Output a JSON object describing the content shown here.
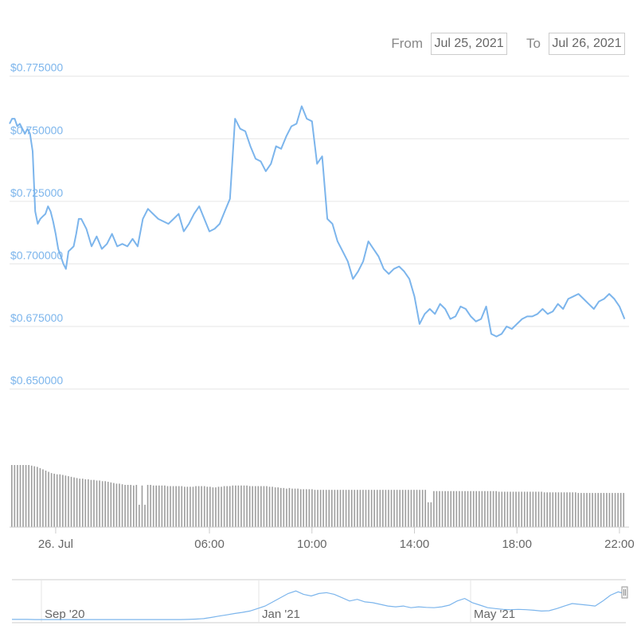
{
  "range_selector": {
    "from_label": "From",
    "from_value": "Jul 25, 2021",
    "to_label": "To",
    "to_value": "Jul 26, 2021"
  },
  "colors": {
    "price_line": "#7cb5ec",
    "volume_bar": "#9e9e9e",
    "grid": "#e6e6e6",
    "axis_label": "#7cb5ec",
    "x_label": "#666666"
  },
  "chart_data": [
    {
      "type": "line",
      "x_unit": "hour of Jul 26 (UTC)",
      "ylim": [
        0.64,
        0.78
      ],
      "y_ticks": [
        {
          "value": 0.775,
          "label": "$0.775000"
        },
        {
          "value": 0.75,
          "label": "$0.750000"
        },
        {
          "value": 0.725,
          "label": "$0.725000"
        },
        {
          "value": 0.7,
          "label": "$0.700000"
        },
        {
          "value": 0.675,
          "label": "$0.675000"
        },
        {
          "value": 0.65,
          "label": "$0.650000"
        }
      ],
      "x_ticks": [
        {
          "value": 0,
          "label": "26. Jul"
        },
        {
          "value": 6,
          "label": "06:00"
        },
        {
          "value": 10,
          "label": "10:00"
        },
        {
          "value": 14,
          "label": "14:00"
        },
        {
          "value": 18,
          "label": "18:00"
        },
        {
          "value": 22,
          "label": "22:00"
        }
      ],
      "xlim": [
        -1.8,
        22.25
      ],
      "grid": true,
      "series": [
        {
          "x": [
            -1.8,
            -1.7,
            -1.6,
            -1.5,
            -1.4,
            -1.3,
            -1.2,
            -1.1,
            -1.0,
            -0.9,
            -0.8,
            -0.7,
            -0.6,
            -0.5,
            -0.4,
            -0.3,
            -0.2,
            -0.1,
            0.0,
            0.1,
            0.2,
            0.3,
            0.4,
            0.5,
            0.6,
            0.7,
            0.8,
            0.9,
            1.0,
            1.2,
            1.4,
            1.6,
            1.8,
            2.0,
            2.2,
            2.4,
            2.6,
            2.8,
            3.0,
            3.2,
            3.4,
            3.6,
            3.8,
            4.0,
            4.2,
            4.4,
            4.6,
            4.8,
            5.0,
            5.2,
            5.4,
            5.6,
            5.8,
            6.0,
            6.2,
            6.4,
            6.6,
            6.8,
            7.0,
            7.2,
            7.4,
            7.6,
            7.8,
            8.0,
            8.2,
            8.4,
            8.6,
            8.8,
            9.0,
            9.2,
            9.4,
            9.6,
            9.8,
            10.0,
            10.2,
            10.4,
            10.6,
            10.8,
            11.0,
            11.2,
            11.4,
            11.6,
            11.8,
            12.0,
            12.2,
            12.4,
            12.6,
            12.8,
            13.0,
            13.2,
            13.4,
            13.6,
            13.8,
            14.0,
            14.2,
            14.4,
            14.6,
            14.8,
            15.0,
            15.2,
            15.4,
            15.6,
            15.8,
            16.0,
            16.2,
            16.4,
            16.6,
            16.8,
            17.0,
            17.2,
            17.4,
            17.6,
            17.8,
            18.0,
            18.2,
            18.4,
            18.6,
            18.8,
            19.0,
            19.2,
            19.4,
            19.6,
            19.8,
            20.0,
            20.2,
            20.4,
            20.6,
            20.8,
            21.0,
            21.2,
            21.4,
            21.6,
            21.8,
            22.0,
            22.2
          ],
          "values": [
            0.756,
            0.758,
            0.758,
            0.755,
            0.756,
            0.754,
            0.752,
            0.754,
            0.752,
            0.745,
            0.721,
            0.716,
            0.718,
            0.719,
            0.72,
            0.723,
            0.721,
            0.717,
            0.712,
            0.706,
            0.703,
            0.7,
            0.698,
            0.705,
            0.706,
            0.707,
            0.712,
            0.718,
            0.718,
            0.714,
            0.707,
            0.711,
            0.706,
            0.708,
            0.712,
            0.707,
            0.708,
            0.707,
            0.71,
            0.707,
            0.718,
            0.722,
            0.72,
            0.718,
            0.717,
            0.716,
            0.718,
            0.72,
            0.713,
            0.716,
            0.72,
            0.723,
            0.718,
            0.713,
            0.714,
            0.716,
            0.721,
            0.726,
            0.758,
            0.754,
            0.753,
            0.747,
            0.742,
            0.741,
            0.737,
            0.74,
            0.747,
            0.746,
            0.751,
            0.755,
            0.756,
            0.763,
            0.758,
            0.757,
            0.74,
            0.743,
            0.718,
            0.716,
            0.709,
            0.705,
            0.701,
            0.694,
            0.697,
            0.701,
            0.709,
            0.706,
            0.703,
            0.698,
            0.696,
            0.698,
            0.699,
            0.697,
            0.694,
            0.687,
            0.676,
            0.68,
            0.682,
            0.68,
            0.684,
            0.682,
            0.678,
            0.679,
            0.683,
            0.682,
            0.679,
            0.677,
            0.678,
            0.683,
            0.672,
            0.671,
            0.672,
            0.675,
            0.674,
            0.676,
            0.678,
            0.679,
            0.679,
            0.68,
            0.682,
            0.68,
            0.681,
            0.684,
            0.682,
            0.686,
            0.687,
            0.688,
            0.686,
            0.684,
            0.682,
            0.685,
            0.686,
            0.688,
            0.686,
            0.683,
            0.678
          ]
        }
      ]
    },
    {
      "type": "bar",
      "description_level": "volume",
      "ylim": [
        0,
        1
      ],
      "values": [
        1.0,
        1.0,
        1.0,
        1.0,
        1.0,
        1.0,
        1.0,
        0.99,
        0.98,
        0.97,
        0.95,
        0.93,
        0.91,
        0.89,
        0.87,
        0.86,
        0.85,
        0.85,
        0.84,
        0.83,
        0.82,
        0.81,
        0.8,
        0.79,
        0.78,
        0.78,
        0.77,
        0.77,
        0.76,
        0.76,
        0.75,
        0.75,
        0.74,
        0.74,
        0.73,
        0.72,
        0.71,
        0.7,
        0.7,
        0.69,
        0.68,
        0.68,
        0.68,
        0.67,
        0.68,
        0.36,
        0.67,
        0.36,
        0.68,
        0.68,
        0.67,
        0.67,
        0.67,
        0.67,
        0.67,
        0.66,
        0.66,
        0.66,
        0.66,
        0.66,
        0.66,
        0.65,
        0.65,
        0.65,
        0.65,
        0.66,
        0.66,
        0.66,
        0.66,
        0.65,
        0.65,
        0.64,
        0.64,
        0.65,
        0.65,
        0.66,
        0.66,
        0.66,
        0.67,
        0.67,
        0.67,
        0.67,
        0.67,
        0.67,
        0.66,
        0.66,
        0.66,
        0.66,
        0.66,
        0.66,
        0.66,
        0.65,
        0.65,
        0.64,
        0.64,
        0.63,
        0.63,
        0.62,
        0.63,
        0.62,
        0.62,
        0.62,
        0.61,
        0.61,
        0.61,
        0.61,
        0.61,
        0.6,
        0.6,
        0.6,
        0.6,
        0.6,
        0.6,
        0.6,
        0.6,
        0.6,
        0.6,
        0.6,
        0.6,
        0.6,
        0.6,
        0.6,
        0.6,
        0.6,
        0.6,
        0.6,
        0.6,
        0.6,
        0.6,
        0.6,
        0.6,
        0.6,
        0.6,
        0.6,
        0.6,
        0.6,
        0.6,
        0.6,
        0.6,
        0.6,
        0.6,
        0.6,
        0.6,
        0.6,
        0.6,
        0.6,
        0.6,
        0.4,
        0.4,
        0.58,
        0.58,
        0.58,
        0.58,
        0.58,
        0.58,
        0.58,
        0.58,
        0.58,
        0.58,
        0.58,
        0.58,
        0.58,
        0.58,
        0.58,
        0.58,
        0.58,
        0.58,
        0.58,
        0.58,
        0.58,
        0.58,
        0.58,
        0.57,
        0.57,
        0.57,
        0.57,
        0.57,
        0.57,
        0.57,
        0.57,
        0.57,
        0.57,
        0.57,
        0.57,
        0.57,
        0.57,
        0.57,
        0.57,
        0.56,
        0.56,
        0.56,
        0.56,
        0.56,
        0.56,
        0.56,
        0.56,
        0.56,
        0.56,
        0.56,
        0.56,
        0.55,
        0.55,
        0.55,
        0.55,
        0.55,
        0.55,
        0.55,
        0.55,
        0.55,
        0.55,
        0.55,
        0.55,
        0.55,
        0.55,
        0.55,
        0.55,
        0.55
      ]
    },
    {
      "type": "line",
      "description_level": "navigator",
      "x_ticks": [
        "Sep '20",
        "Jan '21",
        "May '21"
      ],
      "values": [
        0.01,
        0.01,
        0.01,
        0.009,
        0.009,
        0.009,
        0.009,
        0.009,
        0.009,
        0.009,
        0.009,
        0.009,
        0.009,
        0.009,
        0.009,
        0.009,
        0.009,
        0.009,
        0.009,
        0.009,
        0.009,
        0.009,
        0.009,
        0.01,
        0.012,
        0.015,
        0.022,
        0.03,
        0.037,
        0.045,
        0.052,
        0.06,
        0.075,
        0.09,
        0.115,
        0.14,
        0.165,
        0.18,
        0.16,
        0.15,
        0.165,
        0.17,
        0.16,
        0.14,
        0.12,
        0.13,
        0.115,
        0.11,
        0.1,
        0.09,
        0.085,
        0.09,
        0.08,
        0.085,
        0.082,
        0.08,
        0.085,
        0.095,
        0.12,
        0.135,
        0.11,
        0.095,
        0.08,
        0.075,
        0.07,
        0.068,
        0.07,
        0.068,
        0.065,
        0.06,
        0.062,
        0.075,
        0.09,
        0.105,
        0.1,
        0.095,
        0.09,
        0.12,
        0.155,
        0.175,
        0.162
      ]
    }
  ]
}
